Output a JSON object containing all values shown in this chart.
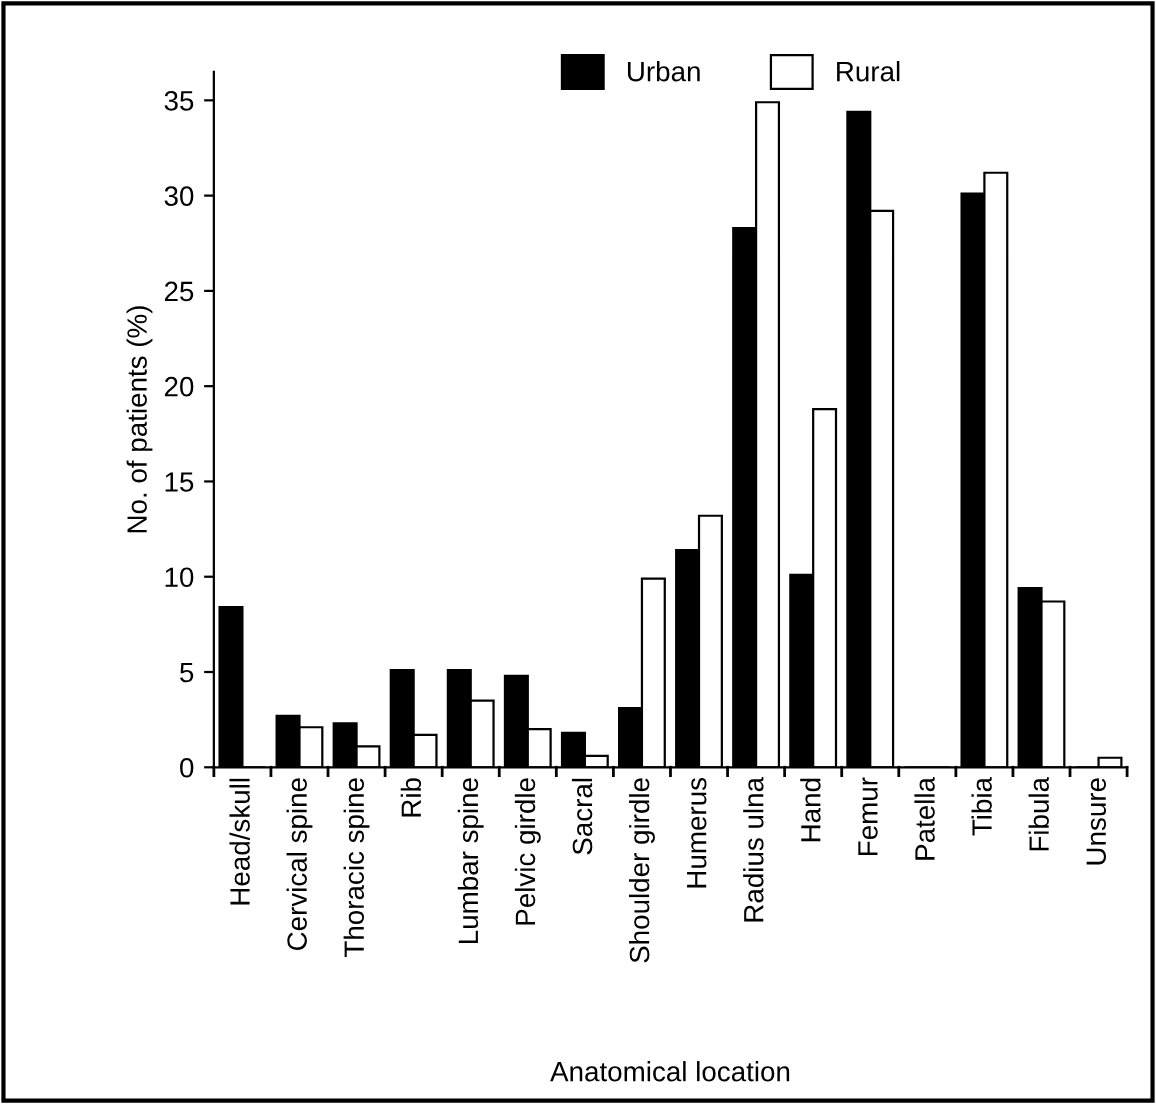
{
  "chart_data": {
    "type": "bar",
    "xlabel": "Anatomical location",
    "ylabel": "No. of patients (%)",
    "categories": [
      "Head/skull",
      "Cervical spine",
      "Thoracic spine",
      "Rib",
      "Lumbar spine",
      "Pelvic girdle",
      "Sacral",
      "Shoulder girdle",
      "Humerus",
      "Radius ulna",
      "Hand",
      "Femur",
      "Patella",
      "Tibia",
      "Fibula",
      "Unsure"
    ],
    "series": [
      {
        "name": "Urban",
        "color": "#000000",
        "values": [
          8.4,
          2.7,
          2.3,
          5.1,
          5.1,
          4.8,
          1.8,
          3.1,
          11.4,
          28.3,
          10.1,
          34.4,
          0,
          30.1,
          9.4,
          0
        ]
      },
      {
        "name": "Rural",
        "color": "#ffffff",
        "values": [
          0,
          2.1,
          1.1,
          1.7,
          3.5,
          2.0,
          0.6,
          9.9,
          13.2,
          34.9,
          18.8,
          29.2,
          0,
          31.2,
          8.7,
          0.5
        ]
      }
    ],
    "ylim": [
      0,
      36.5
    ],
    "yticks": [
      0,
      5,
      10,
      15,
      20,
      25,
      30,
      35
    ],
    "grid": false,
    "legend": "top right"
  }
}
